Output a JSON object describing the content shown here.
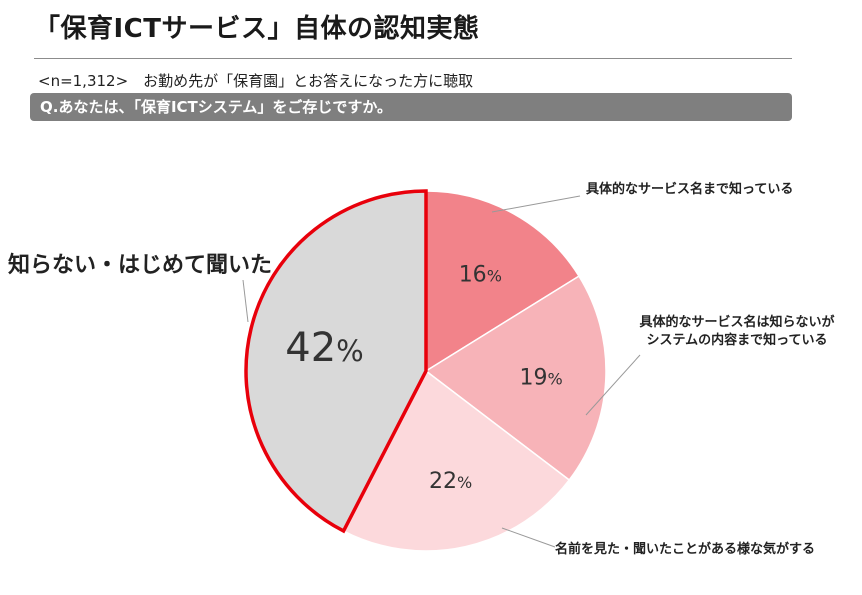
{
  "header": {
    "title": "「保育ICTサービス」自体の認知実態",
    "sample": "<n=1,312>　お勤め先が「保育園」とお答えになった方に聴取",
    "question": "Q.あなたは、「保育ICTシステム」をご存じですか。"
  },
  "chart_data": {
    "type": "pie",
    "start_angle_deg": 0,
    "direction": "clockwise",
    "slices": [
      {
        "label": "具体的なサービス名まで知っている",
        "value": 16,
        "display": "16",
        "unit": "%",
        "color": "#f2838a"
      },
      {
        "label": "具体的なサービス名は知らないが\nシステムの内容まで知っている",
        "value": 19,
        "display": "19",
        "unit": "%",
        "color": "#f7b3b8"
      },
      {
        "label": "名前を見た・聞いたことがある様な気がする",
        "value": 22,
        "display": "22",
        "unit": "%",
        "color": "#fcd9dc"
      },
      {
        "label": "知らない・はじめて聞いた",
        "value": 42,
        "display": "42",
        "unit": "%",
        "color": "#d9d9d9"
      }
    ],
    "highlight_color": "#e8000b"
  }
}
